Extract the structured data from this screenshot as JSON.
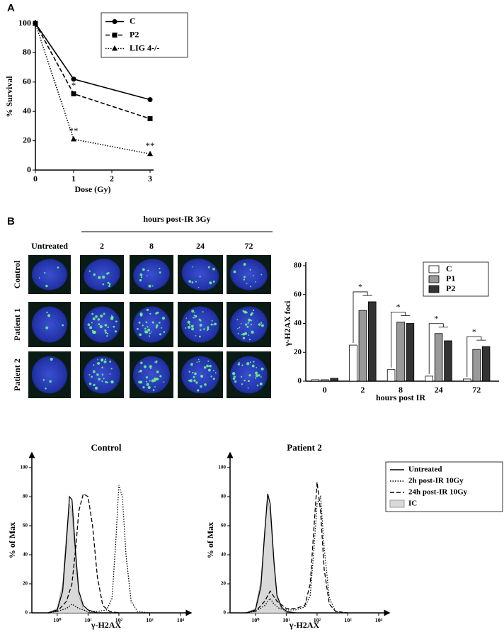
{
  "chart_data": [
    {
      "type": "line",
      "panel": "A",
      "xlabel": "Dose (Gy)",
      "ylabel": "% Survival",
      "x": [
        0,
        1,
        3
      ],
      "series": [
        {
          "name": "C",
          "color": "#000000",
          "marker": "circle",
          "dash": "solid",
          "values": [
            100,
            62,
            48
          ]
        },
        {
          "name": "P2",
          "color": "#000000",
          "marker": "square",
          "dash": "dashed",
          "values": [
            100,
            52,
            35
          ]
        },
        {
          "name": "LIG 4-/-",
          "color": "#000000",
          "marker": "triangle",
          "dash": "dotted",
          "values": [
            100,
            21,
            11
          ]
        }
      ],
      "xlim": [
        0,
        3
      ],
      "xticks": [
        0,
        1,
        2,
        3
      ],
      "ylim": [
        0,
        100
      ],
      "yticks": [
        0,
        20,
        40,
        60,
        80,
        100
      ],
      "legend": "upper right",
      "annotations": [
        {
          "text": "*",
          "x": 1,
          "y": 57
        },
        {
          "text": "**",
          "x": 1,
          "y": 26
        },
        {
          "text": "**",
          "x": 3,
          "y": 16
        }
      ]
    },
    {
      "type": "bar",
      "xlabel": "hours post IR",
      "ylabel": "γ-H2AX foci",
      "categories": [
        "0",
        "2",
        "8",
        "24",
        "72"
      ],
      "series": [
        {
          "name": "C",
          "color": "#ffffff",
          "values": [
            1,
            25,
            8,
            3.5,
            1.5
          ]
        },
        {
          "name": "P1",
          "color": "#999999",
          "values": [
            1,
            49,
            41,
            33,
            22
          ]
        },
        {
          "name": "P2",
          "color": "#333333",
          "values": [
            2,
            55,
            40,
            28,
            24
          ]
        }
      ],
      "ylim": [
        0,
        80
      ],
      "yticks": [
        0,
        20,
        40,
        60,
        80
      ],
      "legend": "upper right",
      "annotations": [
        {
          "text": "*",
          "index": 1
        },
        {
          "text": "*",
          "index": 2
        },
        {
          "text": "*",
          "index": 3
        },
        {
          "text": "*",
          "index": 4
        }
      ]
    },
    {
      "type": "line",
      "title": "Control",
      "xlabel": "γ-H2AX",
      "ylabel": "% of Max",
      "xscale": "log",
      "series": [
        {
          "color": "#000000",
          "dash": "solid",
          "x": [
            0.5,
            1,
            1.5,
            2,
            2.5,
            3,
            4,
            5,
            7,
            10,
            20,
            100
          ],
          "values": [
            0,
            2,
            15,
            50,
            80,
            78,
            40,
            15,
            5,
            2,
            0,
            0
          ]
        },
        {
          "color": "#000000",
          "dash": "dotted",
          "x": [
            0.5,
            1,
            2,
            3,
            5,
            10,
            20,
            40,
            60,
            80,
            100,
            130,
            170,
            250,
            400,
            1000
          ],
          "values": [
            0,
            1,
            3,
            6,
            3,
            1,
            1,
            2,
            10,
            50,
            88,
            80,
            40,
            8,
            1,
            0
          ]
        },
        {
          "color": "#000000",
          "dash": "dashed",
          "x": [
            0.5,
            1,
            2,
            3,
            4,
            5,
            7,
            10,
            14,
            20,
            30,
            50,
            100
          ],
          "values": [
            0,
            1,
            8,
            20,
            45,
            70,
            82,
            80,
            60,
            25,
            5,
            1,
            0
          ]
        },
        {
          "color": "#d9d9d9",
          "area": true,
          "x": [
            0.5,
            1,
            1.5,
            2,
            2.5,
            3,
            4,
            5,
            7,
            10
          ],
          "values": [
            0,
            3,
            20,
            55,
            75,
            70,
            35,
            12,
            3,
            0
          ]
        }
      ],
      "xlim": [
        0.15,
        10000
      ],
      "xticks": [
        {
          "value": 1,
          "label": "10⁰"
        },
        {
          "value": 10,
          "label": "10¹"
        },
        {
          "value": 100,
          "label": "10²"
        },
        {
          "value": 1000,
          "label": "10³"
        },
        {
          "value": 10000,
          "label": "10⁴"
        }
      ],
      "ylim": [
        0,
        100
      ],
      "yticks": [
        0,
        20,
        40,
        60,
        80,
        100
      ]
    },
    {
      "type": "line",
      "title": "Patient 2",
      "xlabel": "γ-H2AX",
      "ylabel": "% of Max",
      "xscale": "log",
      "series": [
        {
          "name": "Untreated",
          "color": "#000000",
          "dash": "solid",
          "x": [
            0.5,
            1,
            1.5,
            2,
            2.5,
            3,
            4,
            5,
            7,
            10,
            20
          ],
          "values": [
            0,
            2,
            18,
            55,
            82,
            75,
            35,
            12,
            4,
            1,
            0
          ]
        },
        {
          "name": "2h post-IR 10Gy",
          "color": "#000000",
          "dash": "dotted",
          "x": [
            0.5,
            1,
            2,
            3,
            4,
            6,
            10,
            20,
            40,
            60,
            80,
            100,
            130,
            170,
            250,
            400,
            1000
          ],
          "values": [
            0,
            1,
            5,
            10,
            6,
            3,
            2,
            2,
            4,
            12,
            45,
            75,
            80,
            45,
            10,
            1,
            0
          ]
        },
        {
          "name": "24h post-IR 10Gy",
          "color": "#000000",
          "dash": "dashed",
          "x": [
            0.5,
            1,
            2,
            3,
            5,
            10,
            20,
            40,
            60,
            80,
            100,
            130,
            170,
            250,
            400,
            1000
          ],
          "values": [
            0,
            1,
            8,
            15,
            8,
            3,
            3,
            5,
            20,
            60,
            90,
            70,
            30,
            6,
            1,
            0
          ]
        },
        {
          "name": "IC",
          "color": "#d9d9d9",
          "area": true,
          "x": [
            0.5,
            1,
            1.5,
            2,
            2.5,
            3,
            4,
            5,
            7,
            10
          ],
          "values": [
            0,
            3,
            22,
            58,
            78,
            70,
            32,
            10,
            3,
            0
          ]
        }
      ],
      "xlim": [
        0.15,
        10000
      ],
      "xticks": [
        {
          "value": 1,
          "label": "10⁰"
        },
        {
          "value": 10,
          "label": "10¹"
        },
        {
          "value": 100,
          "label": "10²"
        },
        {
          "value": 1000,
          "label": "10³"
        },
        {
          "value": 10000,
          "label": "10⁴"
        }
      ],
      "ylim": [
        0,
        100
      ],
      "yticks": [
        0,
        20,
        40,
        60,
        80,
        100
      ],
      "legend": "right"
    }
  ],
  "micrographs": {
    "panel": "B",
    "title": "hours post-IR 3Gy",
    "columns": [
      "Untreated",
      "2",
      "8",
      "24",
      "72"
    ],
    "rows": [
      "Control",
      "Patient 1",
      "Patient 2"
    ]
  }
}
